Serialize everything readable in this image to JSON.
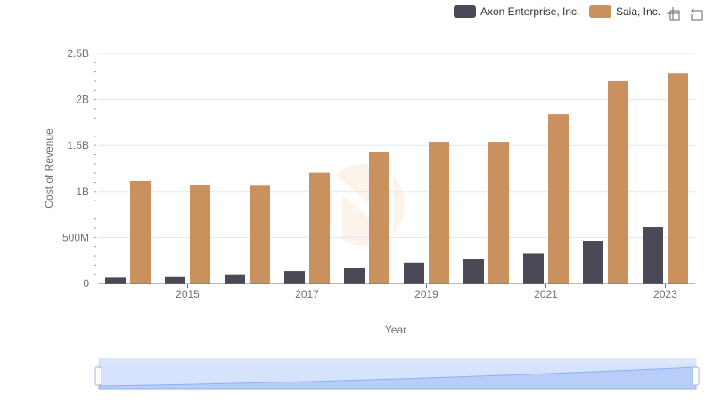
{
  "chart_data": {
    "type": "bar",
    "categories": [
      "2014",
      "2015",
      "2016",
      "2017",
      "2018",
      "2019",
      "2020",
      "2021",
      "2022",
      "2023"
    ],
    "x_tick_labels": [
      "2015",
      "2017",
      "2019",
      "2021",
      "2023"
    ],
    "series": [
      {
        "name": "Axon Enterprise, Inc.",
        "color": "#4a4a56",
        "values": [
          64000000,
          70000000,
          100000000,
          135000000,
          165000000,
          225000000,
          265000000,
          325000000,
          465000000,
          610000000
        ]
      },
      {
        "name": "Saia, Inc.",
        "color": "#c8915e",
        "values": [
          1115000000,
          1070000000,
          1063000000,
          1205000000,
          1425000000,
          1540000000,
          1540000000,
          1840000000,
          2200000000,
          2285000000
        ]
      }
    ],
    "xlabel": "Year",
    "ylabel": "Cost of Revenue",
    "ylim": [
      0,
      2500000000
    ],
    "y_tick_values": [
      0,
      500000000,
      1000000000,
      1500000000,
      2000000000,
      2500000000
    ],
    "y_tick_labels": [
      "0",
      "500M",
      "1B",
      "1.5B",
      "2B",
      "2.5B"
    ],
    "grid": true,
    "legend_position": "top-right"
  },
  "toolbar": {
    "zoom_icon": "zoom-icon",
    "reset_icon": "reset-icon"
  },
  "colors": {
    "grid": "#e0e6f1",
    "axis": "#6e7079",
    "slider_fill": "#dce6fb",
    "slider_border": "#b4c6ef"
  }
}
